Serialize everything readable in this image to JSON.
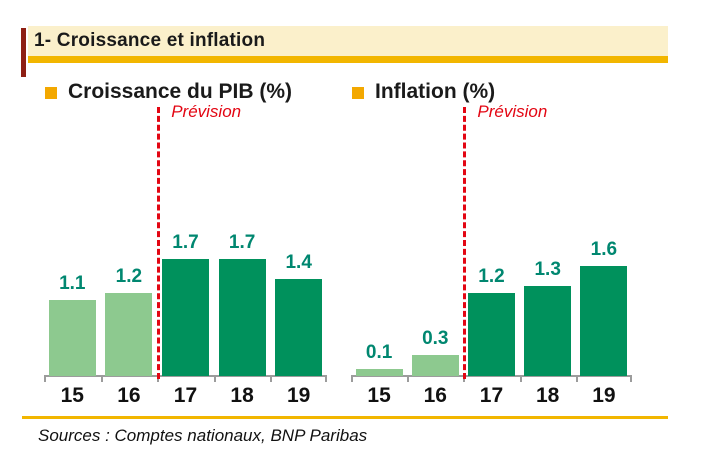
{
  "header": {
    "title": "1- Croissance et inflation"
  },
  "footer": {
    "sources": "Sources : Comptes nationaux, BNP Paribas"
  },
  "colors": {
    "header_bg": "#FBF0CB",
    "gold_rule": "#F2B600",
    "legend_square": "#F3A800",
    "bar_light_green": "#8DC98F",
    "bar_dark_green": "#00915C",
    "value_label_teal": "#008770",
    "forecast_red": "#E30613",
    "axis_gray": "#9C9C9C",
    "edge_mark_dark_red": "#8E1F14"
  },
  "chart_data": [
    {
      "type": "bar",
      "title": "Croissance du PIB (%)",
      "categories": [
        "15",
        "16",
        "17",
        "18",
        "19"
      ],
      "values": [
        1.1,
        1.2,
        1.7,
        1.7,
        1.4
      ],
      "value_labels": [
        "1.1",
        "1.2",
        "1.7",
        "1.7",
        "1.4"
      ],
      "forecast_from_index": 2,
      "annotation": "Prévision",
      "xlabel": "",
      "ylabel": "",
      "ylim": [
        0,
        2
      ],
      "grid": false,
      "legend_position": "top-left"
    },
    {
      "type": "bar",
      "title": "Inflation (%)",
      "categories": [
        "15",
        "16",
        "17",
        "18",
        "19"
      ],
      "values": [
        0.1,
        0.3,
        1.2,
        1.3,
        1.6
      ],
      "value_labels": [
        "0.1",
        "0.3",
        "1.2",
        "1.3",
        "1.6"
      ],
      "forecast_from_index": 2,
      "annotation": "Prévision",
      "xlabel": "",
      "ylabel": "",
      "ylim": [
        0,
        2
      ],
      "grid": false,
      "legend_position": "top-left"
    }
  ]
}
